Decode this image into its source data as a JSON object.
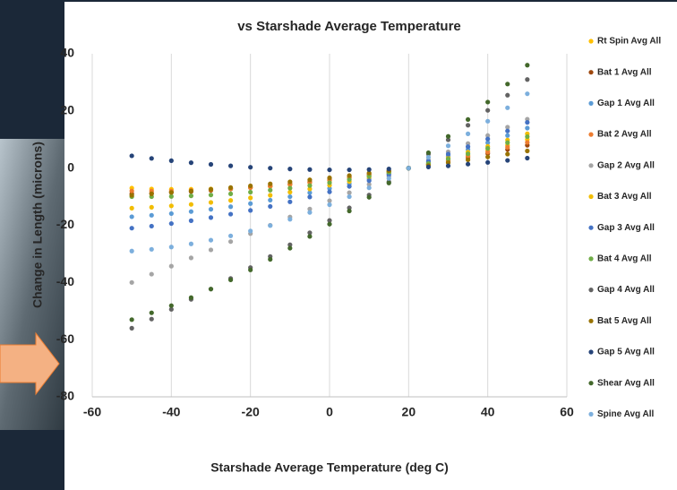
{
  "chart_data": {
    "type": "scatter",
    "title": "vs Starshade Average Temperature",
    "x_label": "Starshade Average Temperature (deg C)",
    "y_label": "Change in Length (microns)",
    "xlim": [
      -60,
      60
    ],
    "xticks": [
      -60,
      -40,
      -20,
      0,
      20,
      40,
      60
    ],
    "ylim": [
      -80,
      40
    ],
    "yticks": [
      -80,
      -60,
      -40,
      -20,
      0,
      20,
      40
    ],
    "xgrid": true,
    "ygrid": false,
    "legend": "right",
    "x": [
      -50,
      -45,
      -40,
      -35,
      -30,
      -25,
      -20,
      -15,
      -10,
      -5,
      0,
      5,
      10,
      15,
      20,
      25,
      30,
      35,
      40,
      45,
      50
    ],
    "series": [
      {
        "name": "Rt Spin Avg All",
        "color": "#ffc000",
        "values": [
          -7.0,
          -7.3,
          -7.4,
          -7.4,
          -7.3,
          -7.1,
          -6.8,
          -6.4,
          -5.8,
          -5.1,
          -4.3,
          -3.4,
          -2.4,
          -1.3,
          0,
          1.4,
          2.9,
          4.5,
          6.2,
          8.0,
          10.0
        ]
      },
      {
        "name": "Bat 1 Avg All",
        "color": "#9e480e",
        "values": [
          -9.0,
          -8.8,
          -8.5,
          -8.2,
          -7.8,
          -7.3,
          -6.8,
          -6.2,
          -5.5,
          -4.8,
          -4.0,
          -3.1,
          -2.1,
          -1.1,
          0,
          1.2,
          2.4,
          3.7,
          5.1,
          6.5,
          8.0
        ]
      },
      {
        "name": "Gap 1 Avg All",
        "color": "#5b9bd5",
        "values": [
          -17.0,
          -16.5,
          -15.9,
          -15.2,
          -14.4,
          -13.5,
          -12.4,
          -11.2,
          -10.0,
          -8.6,
          -7.1,
          -5.5,
          -3.8,
          -1.9,
          0,
          2.1,
          4.2,
          6.5,
          8.9,
          11.4,
          14.0
        ]
      },
      {
        "name": "Bat 2 Avg All",
        "color": "#ed7d31",
        "values": [
          -8.0,
          -8.0,
          -8.0,
          -7.8,
          -7.6,
          -7.2,
          -6.8,
          -6.3,
          -5.7,
          -5.0,
          -4.2,
          -3.2,
          -2.3,
          -1.2,
          0,
          1.3,
          2.6,
          4.1,
          5.6,
          7.3,
          9.0
        ]
      },
      {
        "name": "Gap 2 Avg All",
        "color": "#a5a5a5",
        "values": [
          -40.0,
          -37.1,
          -34.3,
          -31.4,
          -28.6,
          -25.7,
          -22.9,
          -20.0,
          -17.1,
          -14.3,
          -11.4,
          -8.6,
          -5.7,
          -2.9,
          0,
          2.9,
          5.7,
          8.6,
          11.4,
          14.3,
          17.1
        ]
      },
      {
        "name": "Bat 3 Avg All",
        "color": "#f2bd00",
        "values": [
          -14.0,
          -13.7,
          -13.2,
          -12.7,
          -12.0,
          -11.3,
          -10.4,
          -9.5,
          -8.4,
          -7.3,
          -6.0,
          -4.7,
          -3.2,
          -1.7,
          0,
          1.8,
          3.6,
          5.6,
          7.6,
          9.8,
          12.0
        ]
      },
      {
        "name": "Gap 3 Avg All",
        "color": "#4472c4",
        "values": [
          -21.0,
          -20.3,
          -19.4,
          -18.4,
          -17.3,
          -16.1,
          -14.8,
          -13.4,
          -11.8,
          -10.1,
          -8.3,
          -6.4,
          -4.4,
          -2.3,
          0,
          2.4,
          4.9,
          7.5,
          10.2,
          13.0,
          16.0
        ]
      },
      {
        "name": "Bat 4 Avg All",
        "color": "#70ad47",
        "values": [
          -10.0,
          -10.0,
          -9.9,
          -9.7,
          -9.4,
          -9.0,
          -8.4,
          -7.7,
          -7.0,
          -6.1,
          -5.1,
          -4.0,
          -2.8,
          -1.4,
          0,
          1.6,
          3.2,
          5.0,
          6.9,
          8.9,
          11.0
        ]
      },
      {
        "name": "Gap 4 Avg All",
        "color": "#636363",
        "values": [
          -56.0,
          -52.8,
          -49.4,
          -45.9,
          -42.3,
          -38.6,
          -34.8,
          -30.9,
          -26.8,
          -22.6,
          -18.3,
          -13.9,
          -9.4,
          -4.8,
          0,
          4.9,
          9.9,
          15.0,
          20.2,
          25.5,
          31.0
        ]
      },
      {
        "name": "Bat 5 Avg All",
        "color": "#997300",
        "values": [
          -9.5,
          -9.0,
          -8.5,
          -8.0,
          -7.4,
          -6.8,
          -6.2,
          -5.5,
          -4.8,
          -4.1,
          -3.4,
          -2.6,
          -1.7,
          -0.9,
          0,
          0.9,
          1.9,
          2.9,
          3.9,
          4.9,
          6.0
        ]
      },
      {
        "name": "Gap 5 Avg All",
        "color": "#264478",
        "values": [
          4.3,
          3.4,
          2.6,
          1.9,
          1.3,
          0.8,
          0.3,
          0.0,
          -0.3,
          -0.5,
          -0.6,
          -0.6,
          -0.5,
          -0.3,
          0,
          0.4,
          0.8,
          1.4,
          2.0,
          2.7,
          3.5
        ]
      },
      {
        "name": "Shear Avg All",
        "color": "#43682b",
        "values": [
          -53.0,
          -50.6,
          -48.1,
          -45.3,
          -42.3,
          -39.1,
          -35.6,
          -31.9,
          -28.0,
          -23.9,
          -19.6,
          -15.0,
          -10.2,
          -5.2,
          0,
          5.4,
          11.1,
          17.0,
          23.1,
          29.4,
          36.0
        ]
      },
      {
        "name": "Spine Avg All",
        "color": "#7cafdd",
        "values": [
          -29.0,
          -28.4,
          -27.6,
          -26.5,
          -25.2,
          -23.7,
          -22.0,
          -20.1,
          -17.9,
          -15.5,
          -12.8,
          -10.0,
          -6.9,
          -3.6,
          0,
          3.8,
          7.8,
          12.0,
          16.4,
          21.1,
          26.0
        ]
      }
    ]
  }
}
